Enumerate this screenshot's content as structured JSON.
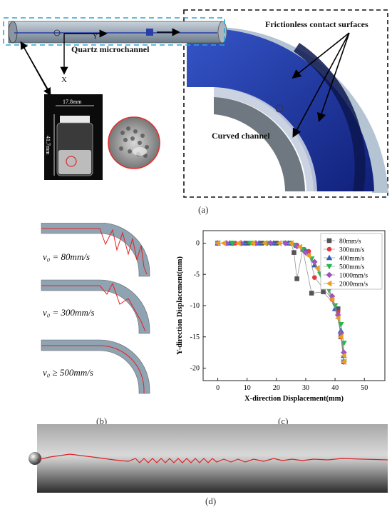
{
  "panel_a": {
    "label_quartz": "Quartz microchannel",
    "label_frictionless": "Frictionless contact surfaces",
    "label_curved": "Curved channel",
    "axis_y": "Y",
    "axis_x": "X",
    "vial_width": "17.8mm",
    "vial_height": "41.7mm",
    "caption": "(a)"
  },
  "panel_b": {
    "labels": [
      "v₀ = 80mm/s",
      "v₀ = 300mm/s",
      "v₀ ≥ 500mm/s"
    ],
    "caption": "(b)"
  },
  "panel_c": {
    "caption": "(c)"
  },
  "panel_d": {
    "caption": "(d)"
  },
  "chart_data": {
    "type": "scatter",
    "xlabel": "X-direction Displacement(mm)",
    "ylabel": "Y-direction Displacement(mm)",
    "xlim": [
      -5,
      57
    ],
    "ylim": [
      -22,
      2
    ],
    "xticks": [
      0,
      10,
      20,
      30,
      40,
      50
    ],
    "yticks": [
      0,
      -5,
      -10,
      -15,
      -20
    ],
    "legend_position": "top-right",
    "series": [
      {
        "name": "80mm/s",
        "color": "#555555",
        "marker": "square",
        "points": [
          [
            0,
            0
          ],
          [
            5,
            0
          ],
          [
            10,
            0
          ],
          [
            15,
            0
          ],
          [
            20,
            0
          ],
          [
            25,
            0
          ],
          [
            26,
            -1.5
          ],
          [
            27,
            -5.7
          ],
          [
            29,
            -1
          ],
          [
            32,
            -8
          ],
          [
            36,
            -7.8
          ],
          [
            41,
            -10.5
          ],
          [
            42,
            -15
          ],
          [
            43,
            -19
          ]
        ]
      },
      {
        "name": "300mm/s",
        "color": "#e8393a",
        "marker": "circle",
        "points": [
          [
            0,
            0
          ],
          [
            6,
            0
          ],
          [
            12,
            0
          ],
          [
            18,
            0
          ],
          [
            24,
            0
          ],
          [
            27,
            -0.3
          ],
          [
            29,
            -1
          ],
          [
            31,
            -1.3
          ],
          [
            33,
            -5.5
          ],
          [
            39,
            -9
          ],
          [
            41,
            -11
          ],
          [
            42,
            -15
          ],
          [
            43,
            -19
          ]
        ]
      },
      {
        "name": "400mm/s",
        "color": "#2e5fbf",
        "marker": "triangle-up",
        "points": [
          [
            0,
            0
          ],
          [
            4,
            0
          ],
          [
            9,
            0
          ],
          [
            14,
            0
          ],
          [
            19,
            0
          ],
          [
            24,
            0
          ],
          [
            27,
            -0.4
          ],
          [
            30,
            -1.2
          ],
          [
            33,
            -3.5
          ],
          [
            37,
            -7
          ],
          [
            40,
            -10.5
          ],
          [
            42,
            -14
          ],
          [
            43,
            -18
          ]
        ]
      },
      {
        "name": "500mm/s",
        "color": "#21b94e",
        "marker": "triangle-down",
        "points": [
          [
            0,
            0
          ],
          [
            5,
            0
          ],
          [
            11,
            0
          ],
          [
            17,
            0
          ],
          [
            23,
            0
          ],
          [
            26,
            -0.3
          ],
          [
            29,
            -1
          ],
          [
            32,
            -2.5
          ],
          [
            35,
            -5
          ],
          [
            38,
            -7.5
          ],
          [
            40,
            -10
          ],
          [
            42,
            -13
          ],
          [
            43,
            -16
          ],
          [
            43,
            -19
          ]
        ]
      },
      {
        "name": "1000mm/s",
        "color": "#a04fc0",
        "marker": "diamond",
        "points": [
          [
            0,
            0
          ],
          [
            3,
            0
          ],
          [
            8,
            0
          ],
          [
            13,
            0
          ],
          [
            18,
            0
          ],
          [
            23,
            0
          ],
          [
            27,
            -0.5
          ],
          [
            30,
            -1.5
          ],
          [
            33,
            -3
          ],
          [
            36,
            -5.5
          ],
          [
            39,
            -8.5
          ],
          [
            41,
            -11.5
          ],
          [
            42,
            -14.5
          ],
          [
            43,
            -17.5
          ],
          [
            43,
            -19
          ]
        ]
      },
      {
        "name": "2000mm/s",
        "color": "#e8a020",
        "marker": "triangle-left",
        "points": [
          [
            0,
            0
          ],
          [
            2,
            0
          ],
          [
            7,
            0
          ],
          [
            12,
            0
          ],
          [
            16,
            0
          ],
          [
            21,
            0
          ],
          [
            25,
            0
          ],
          [
            28,
            -0.6
          ],
          [
            31,
            -2
          ],
          [
            34,
            -4
          ],
          [
            37,
            -6.5
          ],
          [
            39,
            -9
          ],
          [
            41,
            -12
          ],
          [
            42,
            -15
          ],
          [
            43,
            -18
          ],
          [
            43,
            -19
          ]
        ]
      }
    ]
  }
}
